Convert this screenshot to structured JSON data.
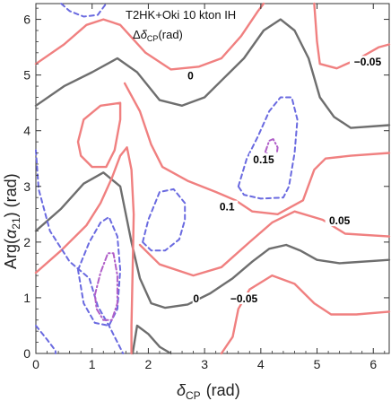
{
  "chart_data": {
    "type": "contour",
    "inset": {
      "line1": "T2HK+Oki 10 kton IH",
      "line2_prefix": "Δ",
      "line2_sym": "δ",
      "line2_sub": "CP",
      "line2_suffix": "(rad)"
    },
    "xlabel": {
      "sym": "δ",
      "sub": "CP",
      "unit": "(rad)"
    },
    "ylabel": {
      "prefix": "Arg(",
      "sym": "α",
      "sub": "21",
      "suffix": ")  (rad)"
    },
    "xlim": [
      0,
      6.283
    ],
    "ylim": [
      0,
      6.283
    ],
    "x_ticks": [
      "0",
      "1",
      "2",
      "3",
      "4",
      "5",
      "6"
    ],
    "y_ticks": [
      "0",
      "1",
      "2",
      "3",
      "4",
      "5",
      "6"
    ],
    "colors": {
      "gray": "#6e6e6e",
      "red": "#f08080",
      "blue": "#6a6ae0",
      "purple": "#b05fc8"
    },
    "contour_labels": [
      {
        "text": "0",
        "x": 2.75,
        "y": 4.95
      },
      {
        "text": "0",
        "x": 2.85,
        "y": 0.95
      },
      {
        "text": "-0.05",
        "x": 5.9,
        "y": 5.2
      },
      {
        "text": "-0.05",
        "x": 3.7,
        "y": 0.95
      },
      {
        "text": "0.15",
        "x": 4.05,
        "y": 3.45
      },
      {
        "text": "0.1",
        "x": 3.4,
        "y": 2.6
      },
      {
        "text": "0.05",
        "x": 5.4,
        "y": 2.35
      }
    ],
    "contours": [
      {
        "level": "0",
        "style": "gray",
        "points": [
          [
            0,
            4.45
          ],
          [
            0.5,
            4.8
          ],
          [
            1.0,
            5.05
          ],
          [
            1.45,
            5.3
          ],
          [
            1.8,
            5.05
          ],
          [
            2.2,
            4.55
          ],
          [
            2.6,
            4.45
          ],
          [
            3.0,
            4.6
          ],
          [
            3.3,
            4.9
          ],
          [
            3.7,
            5.3
          ],
          [
            4.05,
            5.8
          ],
          [
            4.35,
            6.0
          ],
          [
            4.6,
            5.8
          ],
          [
            4.85,
            5.3
          ],
          [
            5.05,
            4.6
          ],
          [
            5.3,
            4.25
          ],
          [
            5.6,
            4.05
          ],
          [
            6.283,
            4.1
          ]
        ]
      },
      {
        "level": "0",
        "style": "gray",
        "points": [
          [
            0,
            2.2
          ],
          [
            0.45,
            2.6
          ],
          [
            0.85,
            3.05
          ],
          [
            1.2,
            3.25
          ],
          [
            1.5,
            3.0
          ],
          [
            1.7,
            2.0
          ],
          [
            1.85,
            1.35
          ],
          [
            2.05,
            0.9
          ],
          [
            2.3,
            0.82
          ],
          [
            2.7,
            0.88
          ],
          [
            3.1,
            1.08
          ],
          [
            3.5,
            1.35
          ],
          [
            3.85,
            1.65
          ],
          [
            4.15,
            1.88
          ],
          [
            4.45,
            1.95
          ],
          [
            4.7,
            1.85
          ],
          [
            5.0,
            1.68
          ],
          [
            5.4,
            1.62
          ],
          [
            6.283,
            1.68
          ]
        ]
      },
      {
        "level": "0",
        "style": "gray",
        "points": [
          [
            1.72,
            0
          ],
          [
            1.8,
            0.5
          ],
          [
            2.0,
            0.35
          ],
          [
            2.2,
            0.12
          ],
          [
            2.4,
            0
          ]
        ]
      },
      {
        "level": "-0.05",
        "style": "red",
        "points": [
          [
            0,
            5.2
          ],
          [
            0.5,
            5.55
          ],
          [
            0.9,
            5.9
          ],
          [
            1.2,
            6.0
          ],
          [
            1.5,
            5.9
          ],
          [
            1.95,
            5.4
          ],
          [
            2.4,
            5.1
          ],
          [
            2.9,
            5.15
          ],
          [
            3.3,
            5.3
          ],
          [
            3.65,
            5.7
          ],
          [
            3.95,
            6.15
          ],
          [
            4.05,
            6.283
          ]
        ]
      },
      {
        "level": "-0.05",
        "style": "red",
        "points": [
          [
            4.95,
            6.283
          ],
          [
            5.0,
            5.6
          ],
          [
            5.05,
            5.2
          ],
          [
            5.35,
            5.12
          ],
          [
            5.75,
            5.3
          ],
          [
            6.1,
            5.5
          ],
          [
            6.283,
            5.55
          ]
        ]
      },
      {
        "level": "-0.05",
        "style": "red",
        "points": [
          [
            0.75,
            3.8
          ],
          [
            0.85,
            4.2
          ],
          [
            1.15,
            4.45
          ],
          [
            1.5,
            4.5
          ],
          [
            1.5,
            4.2
          ],
          [
            1.4,
            3.65
          ],
          [
            1.25,
            3.35
          ],
          [
            1.0,
            3.35
          ],
          [
            0.8,
            3.55
          ],
          [
            0.75,
            3.8
          ]
        ]
      },
      {
        "level": "-0.05",
        "style": "red",
        "points": [
          [
            0,
            1.45
          ],
          [
            0.45,
            1.85
          ],
          [
            0.9,
            2.3
          ],
          [
            1.15,
            2.7
          ],
          [
            1.35,
            3.15
          ],
          [
            1.5,
            3.55
          ],
          [
            1.62,
            3.7
          ],
          [
            1.7,
            3.3
          ],
          [
            1.74,
            2.5
          ],
          [
            1.72,
            1.5
          ],
          [
            1.7,
            0.5
          ],
          [
            1.7,
            0
          ]
        ]
      },
      {
        "level": "-0.05",
        "style": "red",
        "points": [
          [
            1.85,
            1.95
          ],
          [
            2.2,
            1.6
          ],
          [
            2.8,
            1.4
          ],
          [
            3.3,
            1.55
          ],
          [
            3.8,
            2.0
          ],
          [
            4.2,
            2.35
          ],
          [
            4.6,
            2.55
          ],
          [
            5.1,
            2.4
          ],
          [
            5.5,
            2.15
          ],
          [
            6.283,
            2.1
          ]
        ]
      },
      {
        "level": "-0.05",
        "style": "red",
        "points": [
          [
            1.58,
            4.85
          ],
          [
            1.85,
            4.35
          ],
          [
            2.05,
            3.75
          ],
          [
            2.25,
            3.35
          ],
          [
            2.7,
            3.1
          ],
          [
            3.2,
            2.9
          ],
          [
            3.55,
            2.75
          ],
          [
            3.85,
            2.55
          ],
          [
            4.3,
            2.5
          ],
          [
            4.75,
            2.75
          ],
          [
            4.95,
            3.3
          ],
          [
            5.15,
            3.5
          ],
          [
            5.6,
            3.55
          ],
          [
            6.283,
            3.6
          ]
        ]
      },
      {
        "level": "-0.05",
        "style": "red",
        "points": [
          [
            3.3,
            0
          ],
          [
            3.5,
            0.3
          ],
          [
            3.6,
            0.8
          ],
          [
            3.8,
            1.15
          ],
          [
            4.2,
            1.4
          ],
          [
            4.6,
            1.25
          ],
          [
            4.95,
            0.9
          ],
          [
            5.25,
            0.7
          ],
          [
            5.7,
            0.7
          ],
          [
            6.283,
            0.75
          ]
        ]
      },
      {
        "level": "0.05",
        "style": "blue",
        "points": [
          [
            0,
            3.65
          ],
          [
            0.05,
            2.95
          ],
          [
            0.25,
            2.2
          ],
          [
            0.6,
            1.65
          ],
          [
            0.95,
            1.35
          ],
          [
            1.1,
            0.85
          ],
          [
            1.3,
            0.5
          ],
          [
            1.5,
            0.1
          ],
          [
            1.55,
            0.0
          ]
        ]
      },
      {
        "level": "0.05",
        "style": "blue",
        "points": [
          [
            0,
            0.5
          ],
          [
            0.2,
            0.25
          ],
          [
            0.35,
            0.05
          ],
          [
            0.35,
            0
          ]
        ]
      },
      {
        "level": "0.05",
        "style": "blue",
        "points": [
          [
            0.75,
            1.5
          ],
          [
            0.95,
            2.0
          ],
          [
            1.15,
            2.35
          ],
          [
            1.3,
            2.45
          ],
          [
            1.45,
            2.1
          ],
          [
            1.5,
            1.5
          ],
          [
            1.45,
            0.8
          ],
          [
            1.3,
            0.5
          ],
          [
            1.05,
            0.55
          ],
          [
            0.85,
            0.9
          ],
          [
            0.75,
            1.5
          ]
        ]
      },
      {
        "level": "0.05",
        "style": "blue",
        "points": [
          [
            1.9,
            2.0
          ],
          [
            2.0,
            2.4
          ],
          [
            2.2,
            2.9
          ],
          [
            2.45,
            2.95
          ],
          [
            2.65,
            2.7
          ],
          [
            2.65,
            2.4
          ],
          [
            2.55,
            2.05
          ],
          [
            2.3,
            1.85
          ],
          [
            2.05,
            1.85
          ],
          [
            1.9,
            2.0
          ]
        ]
      },
      {
        "level": "0.05",
        "style": "blue",
        "points": [
          [
            3.6,
            3.0
          ],
          [
            3.75,
            3.5
          ],
          [
            3.95,
            3.9
          ],
          [
            4.15,
            4.35
          ],
          [
            4.35,
            4.6
          ],
          [
            4.55,
            4.6
          ],
          [
            4.65,
            4.2
          ],
          [
            4.6,
            3.6
          ],
          [
            4.5,
            3.0
          ],
          [
            4.4,
            2.8
          ],
          [
            4.0,
            2.78
          ],
          [
            3.7,
            2.85
          ],
          [
            3.6,
            3.0
          ]
        ]
      },
      {
        "level": "0.05",
        "style": "blue",
        "points": [
          [
            0.45,
            6.283
          ],
          [
            0.6,
            6.15
          ],
          [
            0.85,
            6.05
          ],
          [
            1.1,
            6.08
          ],
          [
            1.25,
            6.283
          ]
        ]
      },
      {
        "level": "0.1",
        "style": "purple",
        "points": [
          [
            1.05,
            1.05
          ],
          [
            1.15,
            1.45
          ],
          [
            1.28,
            1.8
          ],
          [
            1.38,
            1.8
          ],
          [
            1.45,
            1.4
          ],
          [
            1.45,
            0.9
          ],
          [
            1.35,
            0.6
          ],
          [
            1.2,
            0.6
          ],
          [
            1.08,
            0.8
          ],
          [
            1.05,
            1.05
          ]
        ]
      },
      {
        "level": "0.15",
        "style": "purple",
        "points": [
          [
            4.08,
            3.62
          ],
          [
            4.15,
            3.82
          ],
          [
            4.22,
            3.85
          ],
          [
            4.3,
            3.7
          ],
          [
            4.28,
            3.55
          ],
          [
            4.18,
            3.52
          ],
          [
            4.08,
            3.62
          ]
        ]
      }
    ]
  }
}
